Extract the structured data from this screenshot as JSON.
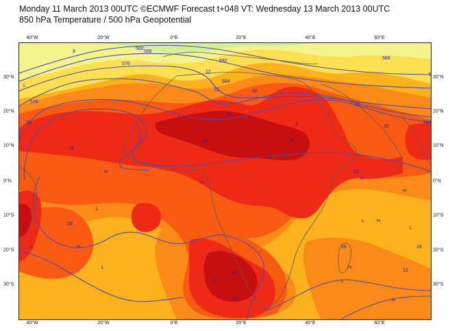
{
  "header": {
    "line1": "Monday 11 March 2013 00UTC ©ECMWF Forecast t+048 VT: Wednesday 13 March 2013 00UTC",
    "line2": "850 hPa Temperature / 500 hPa Geopotential"
  },
  "axes": {
    "lon_labels": [
      "40°W",
      "20°W",
      "0°E",
      "20°E",
      "40°E",
      "60°E"
    ],
    "lat_labels": [
      "30°N",
      "20°N",
      "10°N",
      "0°N",
      "10°S",
      "20°S",
      "30°S"
    ]
  },
  "contour_labels": [
    "8",
    "560",
    "568",
    "576",
    "584",
    "592",
    "592",
    "12",
    "12",
    "16",
    "20",
    "20",
    "24",
    "20",
    "20",
    "20",
    "16",
    "16",
    "12",
    "8",
    "16",
    "12",
    "24",
    "20",
    "576",
    "584",
    "568"
  ],
  "pressure_markers": [
    "L",
    "H"
  ],
  "colors": {
    "deep_red": "#c80f10",
    "red": "#ee2a16",
    "orange_red": "#f85a12",
    "orange": "#fb8a16",
    "amber": "#fcb21c",
    "yellow": "#fde050",
    "light_yellow": "#f3f48c",
    "pale_green": "#d5ef98",
    "geopotential_contour": "#4a4ab5",
    "coast": "#5a5a5a",
    "label_text": "#2222aa"
  }
}
